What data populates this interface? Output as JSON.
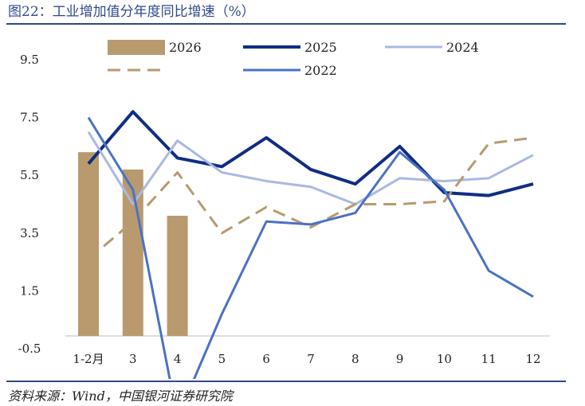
{
  "title": "图22：工业增加值分年度同比增速（%）",
  "source": "资料来源：Wind，中国银河证券研究院",
  "chart_data": {
    "type": "bar+line",
    "title": "图22：工业增加值分年度同比增速（%）",
    "categories": [
      "1-2月",
      "3",
      "4",
      "5",
      "6",
      "7",
      "8",
      "9",
      "10",
      "11",
      "12"
    ],
    "ylim": [
      -0.5,
      9.5
    ],
    "yticks": [
      "9.5",
      "7.5",
      "5.5",
      "3.5",
      "1.5",
      "-0.5"
    ],
    "grid": false,
    "legend_position": "top",
    "series": [
      {
        "name": "2026",
        "type": "bar",
        "color": "#b99a6e",
        "values": [
          6.3,
          5.7,
          4.1,
          null,
          null,
          null,
          null,
          null,
          null,
          null,
          null
        ]
      },
      {
        "name": "2025",
        "type": "line",
        "color": "#0f2d84",
        "dash": false,
        "values": [
          5.9,
          7.7,
          6.1,
          5.8,
          6.8,
          5.7,
          5.2,
          6.5,
          4.9,
          4.8,
          5.2
        ]
      },
      {
        "name": "2024",
        "type": "line",
        "color": "#a9b9e3",
        "dash": false,
        "values": [
          7.0,
          4.5,
          6.7,
          5.6,
          5.3,
          5.1,
          4.5,
          5.4,
          5.3,
          5.4,
          6.2
        ]
      },
      {
        "name": "",
        "type": "line",
        "color": "#b99a6e",
        "dash": true,
        "values": [
          2.6,
          3.9,
          5.6,
          3.5,
          4.4,
          3.7,
          4.5,
          4.5,
          4.6,
          6.6,
          6.8
        ]
      },
      {
        "name": "2022",
        "type": "line",
        "color": "#4a72c4",
        "dash": false,
        "values": [
          7.5,
          5.0,
          -2.9,
          0.7,
          3.9,
          3.8,
          4.2,
          6.3,
          5.0,
          2.2,
          1.3
        ]
      }
    ]
  }
}
